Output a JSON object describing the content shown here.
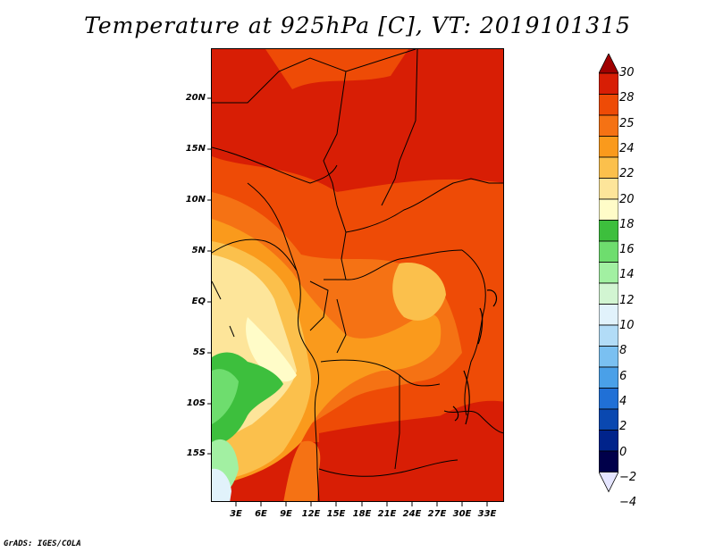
{
  "title": "Temperature at 925hPa [C], VT: 2019101315",
  "footer": "GrADS: IGES/COLA",
  "map": {
    "y_ticks": [
      "20N",
      "15N",
      "10N",
      "5N",
      "EQ",
      "5S",
      "10S",
      "15S"
    ],
    "x_ticks": [
      "3E",
      "6E",
      "9E",
      "12E",
      "15E",
      "18E",
      "21E",
      "24E",
      "27E",
      "30E",
      "33E"
    ]
  },
  "colorbar": {
    "labels": [
      "30",
      "28",
      "25",
      "24",
      "22",
      "20",
      "18",
      "16",
      "14",
      "12",
      "10",
      "8",
      "6",
      "4",
      "2",
      "0",
      "−2",
      "−4"
    ],
    "colors": [
      "#a00000",
      "#d81e05",
      "#ee4b06",
      "#f57214",
      "#fa9a1c",
      "#fbc04c",
      "#fde59a",
      "#fffcc8",
      "#3dbf3d",
      "#6edd6e",
      "#a2f0a2",
      "#d2f5d2",
      "#e1f2fb",
      "#b2dcf7",
      "#7ac0f1",
      "#4aa0e8",
      "#2070d6",
      "#0a48b0",
      "#00238b",
      "#00004a",
      "#e5e5ff"
    ]
  }
}
